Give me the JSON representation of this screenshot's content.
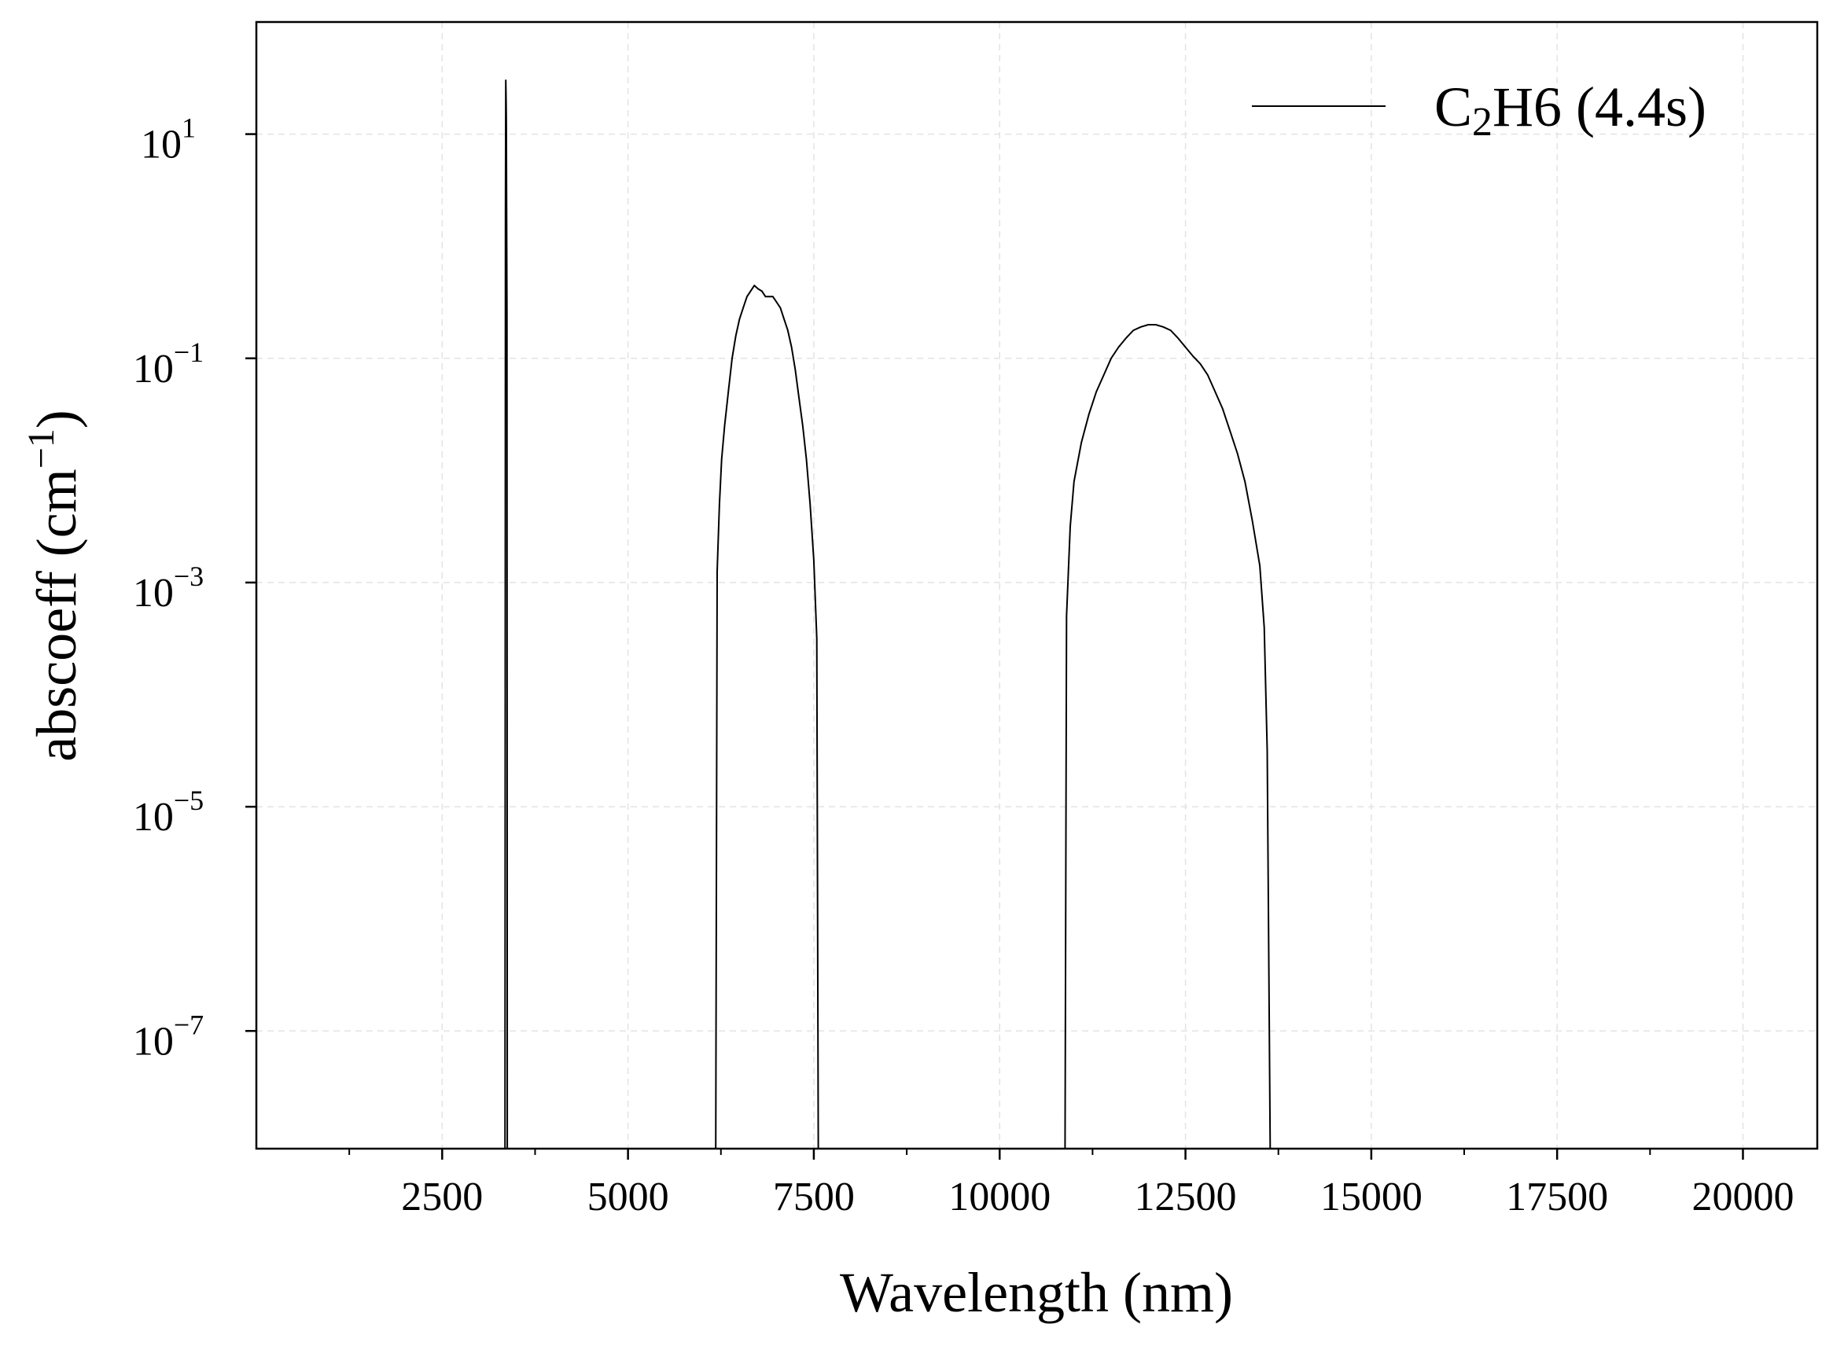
{
  "chart_data": {
    "type": "line",
    "title": "",
    "xlabel": "Wavelength (nm)",
    "ylabel": "abscoeff (cm",
    "ylabel_sup": "−1",
    "ylabel_close": ")",
    "xlim": [
      0,
      21000
    ],
    "ylim_log10": [
      -8.05,
      2
    ],
    "y_scale": "log",
    "grid": true,
    "legend_position": "top-right",
    "x_ticks": [
      2500,
      5000,
      7500,
      10000,
      12500,
      15000,
      17500,
      20000
    ],
    "x_tick_labels": [
      "2500",
      "5000",
      "7500",
      "10000",
      "12500",
      "15000",
      "17500",
      "20000"
    ],
    "x_minor_ticks": [
      1250,
      3750,
      6250,
      8750,
      11250,
      13750,
      16250,
      18750
    ],
    "y_ticks": [
      {
        "base": "10",
        "exp": "1",
        "log": 1
      },
      {
        "base": "10",
        "exp": "−1",
        "log": -1
      },
      {
        "base": "10",
        "exp": "−3",
        "log": -3
      },
      {
        "base": "10",
        "exp": "−5",
        "log": -5
      },
      {
        "base": "10",
        "exp": "−7",
        "log": -7
      }
    ],
    "series": [
      {
        "legend_parts": [
          "C",
          "2",
          "H6 (4.4s)"
        ],
        "color": "#000000",
        "points": [
          [
            3345,
            -8.05
          ],
          [
            3352,
            0.3
          ],
          [
            3356,
            1.48
          ],
          [
            3360,
            1.3
          ],
          [
            3363,
            1.1
          ],
          [
            3366,
            0.4
          ],
          [
            3372,
            -0.6
          ],
          [
            3376,
            -8.05
          ],
          [
            6180,
            -8.05
          ],
          [
            6200,
            -2.9
          ],
          [
            6230,
            -2.3
          ],
          [
            6260,
            -1.9
          ],
          [
            6300,
            -1.6
          ],
          [
            6350,
            -1.3
          ],
          [
            6400,
            -1.0
          ],
          [
            6450,
            -0.8
          ],
          [
            6500,
            -0.65
          ],
          [
            6550,
            -0.55
          ],
          [
            6600,
            -0.45
          ],
          [
            6650,
            -0.4
          ],
          [
            6700,
            -0.35
          ],
          [
            6750,
            -0.38
          ],
          [
            6800,
            -0.4
          ],
          [
            6850,
            -0.45
          ],
          [
            6900,
            -0.45
          ],
          [
            6950,
            -0.45
          ],
          [
            7000,
            -0.5
          ],
          [
            7050,
            -0.55
          ],
          [
            7100,
            -0.65
          ],
          [
            7150,
            -0.75
          ],
          [
            7200,
            -0.9
          ],
          [
            7250,
            -1.1
          ],
          [
            7300,
            -1.35
          ],
          [
            7350,
            -1.6
          ],
          [
            7400,
            -1.9
          ],
          [
            7450,
            -2.3
          ],
          [
            7500,
            -2.8
          ],
          [
            7540,
            -3.5
          ],
          [
            7560,
            -8.05
          ],
          [
            10880,
            -8.05
          ],
          [
            10900,
            -3.3
          ],
          [
            10950,
            -2.5
          ],
          [
            11000,
            -2.1
          ],
          [
            11100,
            -1.75
          ],
          [
            11200,
            -1.5
          ],
          [
            11300,
            -1.3
          ],
          [
            11400,
            -1.15
          ],
          [
            11500,
            -1.0
          ],
          [
            11600,
            -0.9
          ],
          [
            11700,
            -0.82
          ],
          [
            11800,
            -0.75
          ],
          [
            11900,
            -0.72
          ],
          [
            12000,
            -0.7
          ],
          [
            12100,
            -0.7
          ],
          [
            12200,
            -0.72
          ],
          [
            12300,
            -0.75
          ],
          [
            12400,
            -0.82
          ],
          [
            12500,
            -0.9
          ],
          [
            12600,
            -0.98
          ],
          [
            12700,
            -1.05
          ],
          [
            12800,
            -1.15
          ],
          [
            12900,
            -1.3
          ],
          [
            13000,
            -1.45
          ],
          [
            13100,
            -1.65
          ],
          [
            13200,
            -1.85
          ],
          [
            13300,
            -2.1
          ],
          [
            13400,
            -2.45
          ],
          [
            13500,
            -2.85
          ],
          [
            13560,
            -3.4
          ],
          [
            13600,
            -4.5
          ],
          [
            13640,
            -8.05
          ]
        ]
      }
    ]
  }
}
